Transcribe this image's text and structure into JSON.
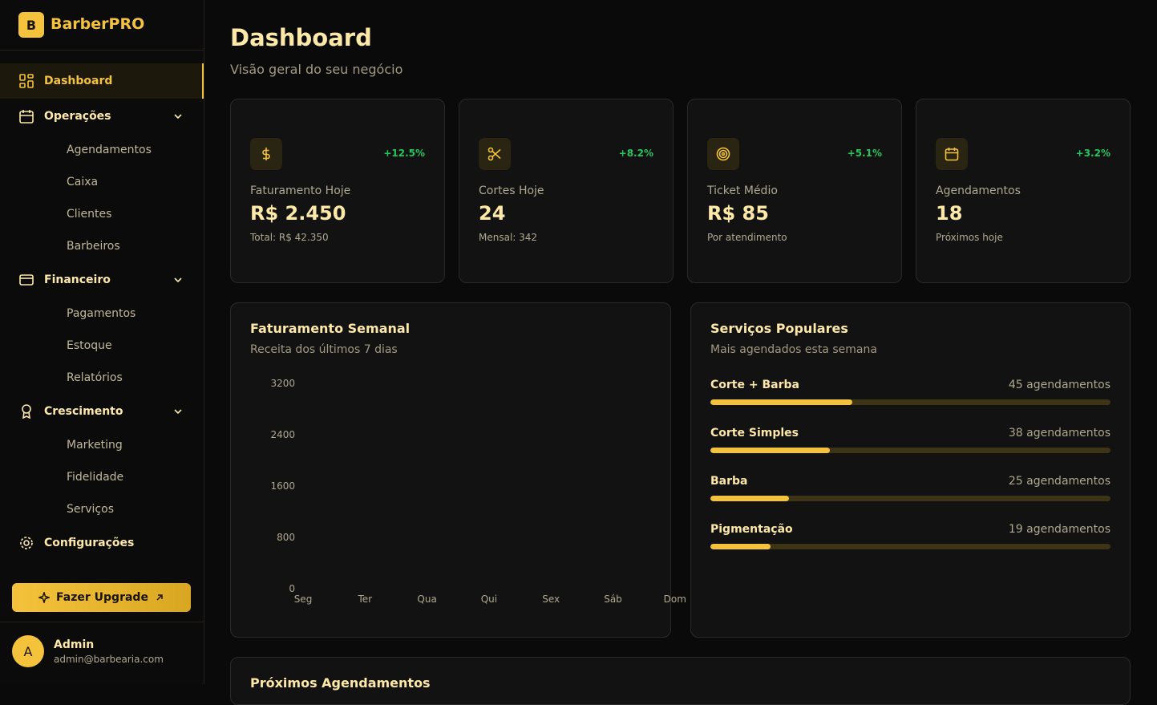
{
  "sidebar": {
    "brand_initial": "B",
    "brand": "BarberPRO",
    "nav": [
      {
        "label": "Dashboard"
      },
      {
        "label": "Operações",
        "items": [
          "Agendamentos",
          "Caixa",
          "Clientes",
          "Barbeiros"
        ]
      },
      {
        "label": "Financeiro",
        "items": [
          "Pagamentos",
          "Estoque",
          "Relatórios"
        ]
      },
      {
        "label": "Crescimento",
        "items": [
          "Marketing",
          "Fidelidade",
          "Serviços"
        ]
      },
      {
        "label": "Configurações"
      }
    ],
    "upgrade": "Fazer Upgrade",
    "user": {
      "initial": "A",
      "name": "Admin",
      "email": "admin@barbearia.com"
    }
  },
  "header": {
    "title": "Dashboard",
    "subtitle": "Visão geral do seu negócio"
  },
  "stats": [
    {
      "label": "Faturamento Hoje",
      "value": "R$ 2.450",
      "sub": "Total: R$ 42.350",
      "change": "+12.5%"
    },
    {
      "label": "Cortes Hoje",
      "value": "24",
      "sub": "Mensal: 342",
      "change": "+8.2%"
    },
    {
      "label": "Ticket Médio",
      "value": "R$ 85",
      "sub": "Por atendimento",
      "change": "+5.1%"
    },
    {
      "label": "Agendamentos",
      "value": "18",
      "sub": "Próximos hoje",
      "change": "+3.2%"
    }
  ],
  "weekly": {
    "title": "Faturamento Semanal",
    "subtitle": "Receita dos últimos 7 dias",
    "categories": [
      "Seg",
      "Ter",
      "Qua",
      "Qui",
      "Sex",
      "Sáb",
      "Dom"
    ],
    "ylim": [
      0,
      3200
    ],
    "yticks": [
      0,
      800,
      1600,
      2400,
      3200
    ]
  },
  "services": {
    "title": "Serviços Populares",
    "subtitle": "Mais agendados esta semana",
    "items": [
      {
        "name": "Corte + Barba",
        "count": 45,
        "label": "45 agendamentos"
      },
      {
        "name": "Corte Simples",
        "count": 38,
        "label": "38 agendamentos"
      },
      {
        "name": "Barba",
        "count": 25,
        "label": "25 agendamentos"
      },
      {
        "name": "Pigmentação",
        "count": 19,
        "label": "19 agendamentos"
      }
    ]
  },
  "upcoming": {
    "title": "Próximos Agendamentos"
  }
}
